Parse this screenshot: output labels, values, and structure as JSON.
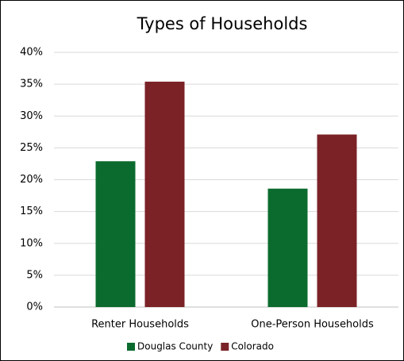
{
  "chart_data": {
    "type": "bar",
    "title": "Types of Households",
    "categories": [
      "Renter Households",
      "One-Person Households"
    ],
    "series": [
      {
        "name": "Douglas County",
        "color": "#0b6b2e",
        "values": [
          22.9,
          18.6
        ]
      },
      {
        "name": "Colorado",
        "color": "#7b2226",
        "values": [
          35.4,
          27.1
        ]
      }
    ],
    "ylim": [
      0,
      40
    ],
    "yticks": [
      {
        "value": 0,
        "label": "0%"
      },
      {
        "value": 5,
        "label": "5%"
      },
      {
        "value": 10,
        "label": "10%"
      },
      {
        "value": 15,
        "label": "15%"
      },
      {
        "value": 20,
        "label": "20%"
      },
      {
        "value": 25,
        "label": "25%"
      },
      {
        "value": 30,
        "label": "30%"
      },
      {
        "value": 35,
        "label": "35%"
      },
      {
        "value": 40,
        "label": "40%"
      }
    ],
    "grid": true,
    "legend": "bottom"
  }
}
